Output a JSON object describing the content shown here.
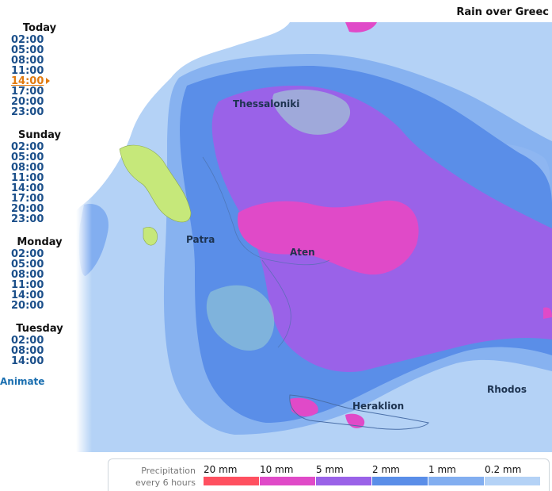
{
  "title": "Rain over Greec",
  "days": [
    {
      "label": "Today",
      "times": [
        "02:00",
        "05:00",
        "08:00",
        "11:00",
        "14:00",
        "17:00",
        "20:00",
        "23:00"
      ]
    },
    {
      "label": "Sunday",
      "times": [
        "02:00",
        "05:00",
        "08:00",
        "11:00",
        "14:00",
        "17:00",
        "20:00",
        "23:00"
      ]
    },
    {
      "label": "Monday",
      "times": [
        "02:00",
        "05:00",
        "08:00",
        "11:00",
        "14:00",
        "20:00"
      ]
    },
    {
      "label": "Tuesday",
      "times": [
        "02:00",
        "08:00",
        "14:00"
      ]
    }
  ],
  "selected_time": "Today 14:00",
  "animate_label": "Animate",
  "cities": {
    "thessaloniki": "Thessaloniki",
    "patra": "Patra",
    "aten": "Aten",
    "heraklion": "Heraklion",
    "rhodos": "Rhodos"
  },
  "legend": {
    "label_line1": "Precipitation",
    "label_line2": "every 6 hours",
    "items": [
      {
        "label": "20 mm",
        "color": "#ff5060"
      },
      {
        "label": "10 mm",
        "color": "#e04ac8"
      },
      {
        "label": "5 mm",
        "color": "#9a62e8"
      },
      {
        "label": "2 mm",
        "color": "#5a8ee8"
      },
      {
        "label": "1 mm",
        "color": "#82aef0"
      },
      {
        "label": "0.2 mm",
        "color": "#b4d2f6"
      }
    ]
  }
}
